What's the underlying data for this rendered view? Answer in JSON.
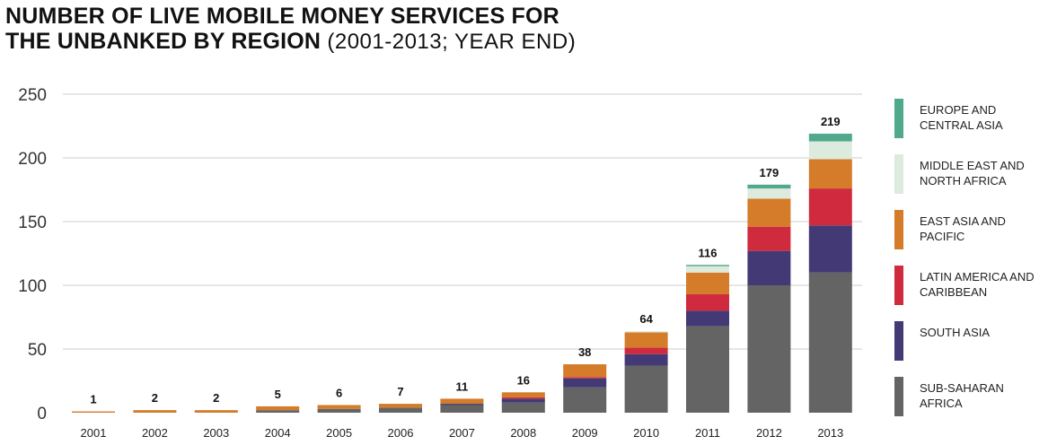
{
  "title": {
    "bold": "NUMBER OF LIVE MOBILE MONEY SERVICES FOR",
    "bold2": "THE UNBANKED BY REGION",
    "subtitle": "(2001-2013; YEAR END)"
  },
  "colors": {
    "europe_central_asia": "#4fa98a",
    "middle_east_north_africa": "#dcebdd",
    "east_asia_pacific": "#d47c2a",
    "latin_america_caribbean": "#cf2a3d",
    "south_asia": "#433a75",
    "sub_saharan_africa": "#646464",
    "grid": "#cccccc"
  },
  "chart_data": {
    "type": "bar",
    "stacked": true,
    "categories": [
      "2001",
      "2002",
      "2003",
      "2004",
      "2005",
      "2006",
      "2007",
      "2008",
      "2009",
      "2010",
      "2011",
      "2012",
      "2013"
    ],
    "series": [
      {
        "name": "SUB-SAHARAN AFRICA",
        "values": [
          0,
          0,
          0,
          2,
          3,
          4,
          6,
          8,
          20,
          37,
          68,
          100,
          110
        ]
      },
      {
        "name": "SOUTH ASIA",
        "values": [
          0,
          0,
          0,
          0,
          0,
          0,
          1,
          3,
          7,
          9,
          12,
          27,
          37
        ]
      },
      {
        "name": "LATIN AMERICA AND CARIBBEAN",
        "values": [
          0,
          0,
          0,
          0,
          0,
          0,
          0,
          1,
          1,
          5,
          13,
          19,
          29
        ]
      },
      {
        "name": "EAST ASIA AND PACIFIC",
        "values": [
          1,
          2,
          2,
          3,
          3,
          3,
          4,
          4,
          10,
          12,
          17,
          22,
          23
        ]
      },
      {
        "name": "MIDDLE EAST AND NORTH AFRICA",
        "values": [
          0,
          0,
          0,
          0,
          0,
          0,
          0,
          0,
          0,
          1,
          5,
          8,
          14
        ]
      },
      {
        "name": "EUROPE AND CENTRAL ASIA",
        "values": [
          0,
          0,
          0,
          0,
          0,
          0,
          0,
          0,
          0,
          0,
          1,
          3,
          6
        ]
      }
    ],
    "totals": [
      1,
      2,
      2,
      5,
      6,
      7,
      11,
      16,
      38,
      64,
      116,
      179,
      219
    ],
    "yticks": [
      0,
      50,
      100,
      150,
      200,
      250
    ],
    "ylim": [
      0,
      250
    ],
    "grid": true,
    "legend": "right",
    "legend_order": [
      {
        "label": "EUROPE AND CENTRAL ASIA",
        "color_key": "europe_central_asia"
      },
      {
        "label": "MIDDLE EAST AND NORTH AFRICA",
        "color_key": "middle_east_north_africa"
      },
      {
        "label": "EAST ASIA AND PACIFIC",
        "color_key": "east_asia_pacific"
      },
      {
        "label": "LATIN AMERICA AND CARIBBEAN",
        "color_key": "latin_america_caribbean"
      },
      {
        "label": "SOUTH ASIA",
        "color_key": "south_asia"
      },
      {
        "label": "SUB-SAHARAN AFRICA",
        "color_key": "sub_saharan_africa"
      }
    ]
  }
}
